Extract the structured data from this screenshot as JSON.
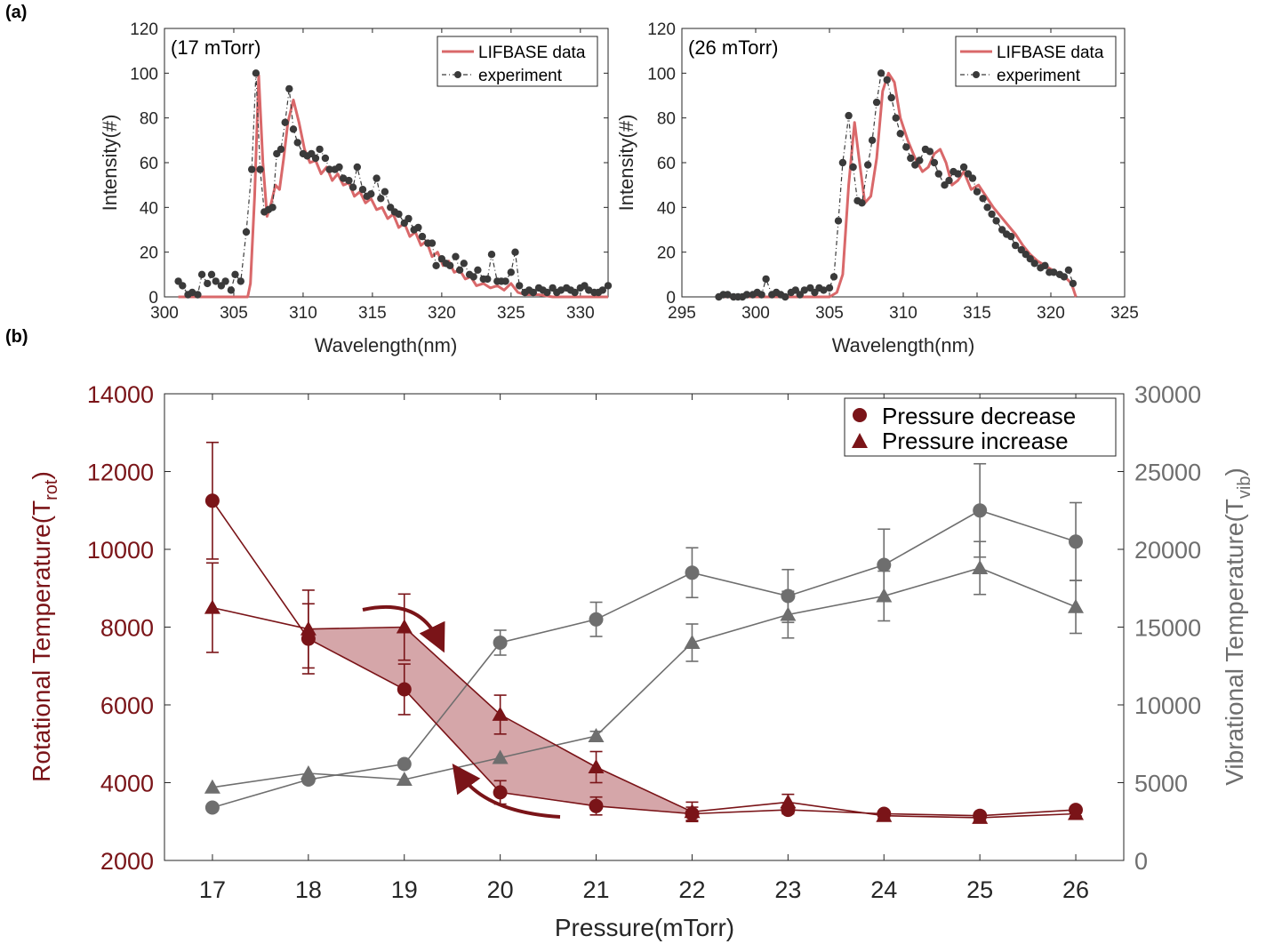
{
  "panel_labels": {
    "a": "(a)",
    "b": "(b)"
  },
  "colors": {
    "simulation": "#d9686a",
    "experiment": "#3a3a3a",
    "rot": "#7a1418",
    "vib": "#6e6e6e",
    "band": "#b96b6f",
    "axis": "#262626"
  },
  "chart_data": [
    {
      "type": "line",
      "panel": "a-left",
      "annotation": "(17 mTorr)",
      "xlabel": "Wavelength(nm)",
      "ylabel": "Intensity(#)",
      "xlim": [
        300,
        332
      ],
      "ylim": [
        0,
        120
      ],
      "xticks": [
        300,
        305,
        310,
        315,
        320,
        325,
        330
      ],
      "yticks": [
        0,
        20,
        40,
        60,
        80,
        100,
        120
      ],
      "legend": [
        "LIFBASE data",
        "experiment"
      ],
      "series": [
        {
          "name": "LIFBASE data",
          "style": "line",
          "x": [
            301,
            306.0,
            306.2,
            306.5,
            306.8,
            307.1,
            307.4,
            307.7,
            308.0,
            308.3,
            308.6,
            308.9,
            309.3,
            309.7,
            310.1,
            310.5,
            310.9,
            311.3,
            311.7,
            312.1,
            312.5,
            312.9,
            313.3,
            313.7,
            314.1,
            314.5,
            314.9,
            315.3,
            315.7,
            316.1,
            316.5,
            316.9,
            317.3,
            317.7,
            318.1,
            318.5,
            318.9,
            319.3,
            319.7,
            320.1,
            320.5,
            320.9,
            321.3,
            321.7,
            322.1,
            322.5,
            323.0,
            323.5,
            324.0,
            324.5,
            325.0,
            325.5,
            326.0,
            327,
            328,
            329,
            330,
            331,
            332
          ],
          "y": [
            0,
            0,
            6,
            45,
            99,
            60,
            36,
            42,
            50,
            48,
            62,
            78,
            88,
            78,
            66,
            60,
            61,
            55,
            58,
            52,
            55,
            50,
            51,
            45,
            47,
            42,
            44,
            39,
            40,
            35,
            37,
            31,
            33,
            27,
            29,
            23,
            25,
            18,
            20,
            14,
            16,
            11,
            12,
            8,
            9,
            5,
            6,
            4,
            5,
            3,
            6,
            2,
            1,
            1,
            0,
            0,
            0,
            0,
            0
          ]
        },
        {
          "name": "experiment",
          "style": "dash-dot-markers",
          "x": [
            301.0,
            301.3,
            301.7,
            302.0,
            302.4,
            302.7,
            303.1,
            303.4,
            303.7,
            304.1,
            304.4,
            304.8,
            305.1,
            305.5,
            305.9,
            306.3,
            306.6,
            306.9,
            307.2,
            307.5,
            307.8,
            308.1,
            308.4,
            308.7,
            309.0,
            309.3,
            309.6,
            310.0,
            310.3,
            310.6,
            310.9,
            311.2,
            311.6,
            311.9,
            312.3,
            312.6,
            312.9,
            313.3,
            313.6,
            313.9,
            314.3,
            314.6,
            314.9,
            315.3,
            315.6,
            315.9,
            316.3,
            316.6,
            316.9,
            317.3,
            317.6,
            318.0,
            318.3,
            318.6,
            319.0,
            319.3,
            319.6,
            320.0,
            320.3,
            320.6,
            321.0,
            321.3,
            321.6,
            322.0,
            322.3,
            322.6,
            323.0,
            323.3,
            323.6,
            324.0,
            324.3,
            324.6,
            325.0,
            325.3,
            325.6,
            326.0,
            326.3,
            326.6,
            327.0,
            327.3,
            327.6,
            328.0,
            328.3,
            328.6,
            329.0,
            329.3,
            329.6,
            330.0,
            330.3,
            330.6,
            331.0,
            331.3,
            331.6,
            332.0
          ],
          "y": [
            7,
            5,
            1,
            2,
            1,
            10,
            6,
            10,
            7,
            5,
            7,
            3,
            10,
            7,
            29,
            57,
            100,
            57,
            38,
            39,
            40,
            64,
            66,
            78,
            93,
            75,
            69,
            64,
            63,
            64,
            62,
            66,
            62,
            57,
            57,
            58,
            53,
            52,
            49,
            58,
            48,
            45,
            46,
            53,
            44,
            47,
            40,
            38,
            37,
            33,
            35,
            30,
            31,
            27,
            24,
            24,
            14,
            17,
            15,
            14,
            18,
            12,
            15,
            10,
            9,
            12,
            8,
            8,
            19,
            7,
            7,
            7,
            11,
            20,
            5,
            2,
            3,
            2,
            4,
            3,
            2,
            4,
            2,
            3,
            4,
            3,
            2,
            4,
            5,
            3,
            2,
            2,
            3,
            5
          ]
        }
      ]
    },
    {
      "type": "line",
      "panel": "a-right",
      "annotation": "(26 mTorr)",
      "xlabel": "Wavelength(nm)",
      "ylabel": "Intensity(#)",
      "xlim": [
        295,
        325
      ],
      "ylim": [
        0,
        120
      ],
      "xticks": [
        295,
        300,
        305,
        310,
        315,
        320,
        325
      ],
      "yticks": [
        0,
        20,
        40,
        60,
        80,
        100,
        120
      ],
      "legend": [
        "LIFBASE data",
        "experiment"
      ],
      "series": [
        {
          "name": "LIFBASE data",
          "style": "line",
          "x": [
            297.5,
            305.0,
            305.5,
            305.9,
            306.3,
            306.7,
            307.0,
            307.4,
            307.8,
            308.2,
            308.6,
            309.0,
            309.4,
            309.8,
            310.3,
            310.8,
            311.3,
            311.7,
            312.1,
            312.5,
            312.9,
            313.3,
            313.7,
            314.1,
            314.6,
            315.1,
            315.6,
            316.1,
            316.6,
            317.1,
            317.6,
            318.1,
            318.6,
            319.1,
            319.6,
            320.1,
            320.6,
            321.1,
            321.4,
            321.7
          ],
          "y": [
            0,
            0,
            2,
            10,
            50,
            78,
            62,
            42,
            45,
            62,
            92,
            100,
            96,
            80,
            70,
            62,
            56,
            58,
            64,
            66,
            60,
            50,
            52,
            56,
            48,
            50,
            45,
            40,
            36,
            32,
            28,
            23,
            19,
            16,
            14,
            12,
            10,
            8,
            6,
            0
          ]
        },
        {
          "name": "experiment",
          "style": "dash-dot-markers",
          "x": [
            297.5,
            297.8,
            298.1,
            298.5,
            298.8,
            299.1,
            299.4,
            299.8,
            300.1,
            300.4,
            300.7,
            301.1,
            301.4,
            301.7,
            302.0,
            302.4,
            302.7,
            303.0,
            303.3,
            303.7,
            304.0,
            304.3,
            304.6,
            305.0,
            305.3,
            305.6,
            305.9,
            306.3,
            306.6,
            306.9,
            307.2,
            307.6,
            307.9,
            308.2,
            308.5,
            308.9,
            309.2,
            309.5,
            309.8,
            310.2,
            310.5,
            310.8,
            311.1,
            311.5,
            311.8,
            312.1,
            312.4,
            312.8,
            313.1,
            313.4,
            313.7,
            314.1,
            314.4,
            314.7,
            315.0,
            315.4,
            315.7,
            316.0,
            316.3,
            316.7,
            317.0,
            317.3,
            317.6,
            318.0,
            318.3,
            318.6,
            318.9,
            319.3,
            319.6,
            319.9,
            320.2,
            320.6,
            320.9,
            321.2,
            321.5
          ],
          "y": [
            0,
            1,
            1,
            0,
            0,
            0,
            1,
            1,
            2,
            1,
            8,
            1,
            2,
            1,
            0,
            2,
            3,
            1,
            3,
            4,
            2,
            4,
            3,
            4,
            9,
            34,
            60,
            81,
            58,
            43,
            42,
            59,
            70,
            87,
            100,
            97,
            89,
            80,
            73,
            67,
            62,
            59,
            61,
            66,
            65,
            60,
            55,
            50,
            52,
            56,
            55,
            58,
            55,
            53,
            47,
            44,
            40,
            37,
            34,
            30,
            28,
            27,
            23,
            21,
            19,
            17,
            15,
            13,
            14,
            11,
            11,
            10,
            9,
            12,
            6
          ]
        }
      ]
    },
    {
      "type": "line",
      "panel": "b",
      "xlabel": "Pressure(mTorr)",
      "ylabel_left": "Rotational Temperature(T",
      "ylabel_left_sub": "rot",
      "ylabel_left_end": ")",
      "ylabel_right": "Vibrational Temperature(T",
      "ylabel_right_sub": "vib",
      "ylabel_right_end": ")",
      "x": [
        17,
        18,
        19,
        20,
        21,
        22,
        23,
        24,
        25,
        26
      ],
      "xlim": [
        16.5,
        26.5
      ],
      "ylim_left": [
        2000,
        14000
      ],
      "ylim_right": [
        0,
        30000
      ],
      "yticks_left": [
        2000,
        4000,
        6000,
        8000,
        10000,
        12000,
        14000
      ],
      "yticks_right": [
        0,
        5000,
        10000,
        15000,
        20000,
        25000,
        30000
      ],
      "legend": [
        "Pressure decrease",
        "Pressure increase"
      ],
      "series": [
        {
          "name": "Pressure decrease",
          "axis": "left",
          "marker": "circle",
          "values": [
            11250,
            7700,
            6400,
            3750,
            3400,
            3200,
            3300,
            3200,
            3150,
            3300
          ],
          "err": [
            1500,
            900,
            650,
            300,
            230,
            170,
            100,
            60,
            70,
            60
          ]
        },
        {
          "name": "Pressure increase",
          "axis": "left",
          "marker": "triangle",
          "values": [
            8500,
            7950,
            8000,
            5750,
            4400,
            3250,
            3500,
            3150,
            3100,
            3200
          ],
          "err": [
            1150,
            1000,
            850,
            500,
            400,
            250,
            200,
            70,
            70,
            60
          ]
        },
        {
          "name": "Pressure decrease",
          "axis": "right",
          "marker": "circle",
          "values": [
            3400,
            5200,
            6200,
            14000,
            15500,
            18500,
            17000,
            19000,
            22500,
            20500
          ],
          "err": [
            0,
            0,
            0,
            800,
            1100,
            1600,
            1700,
            2300,
            3000,
            2500
          ]
        },
        {
          "name": "Pressure increase",
          "axis": "right",
          "marker": "triangle",
          "values": [
            4700,
            5600,
            5200,
            6600,
            8000,
            14000,
            15800,
            17000,
            18800,
            16300
          ],
          "err": [
            0,
            0,
            0,
            0,
            300,
            1200,
            1500,
            1600,
            1700,
            1700
          ]
        }
      ]
    }
  ]
}
